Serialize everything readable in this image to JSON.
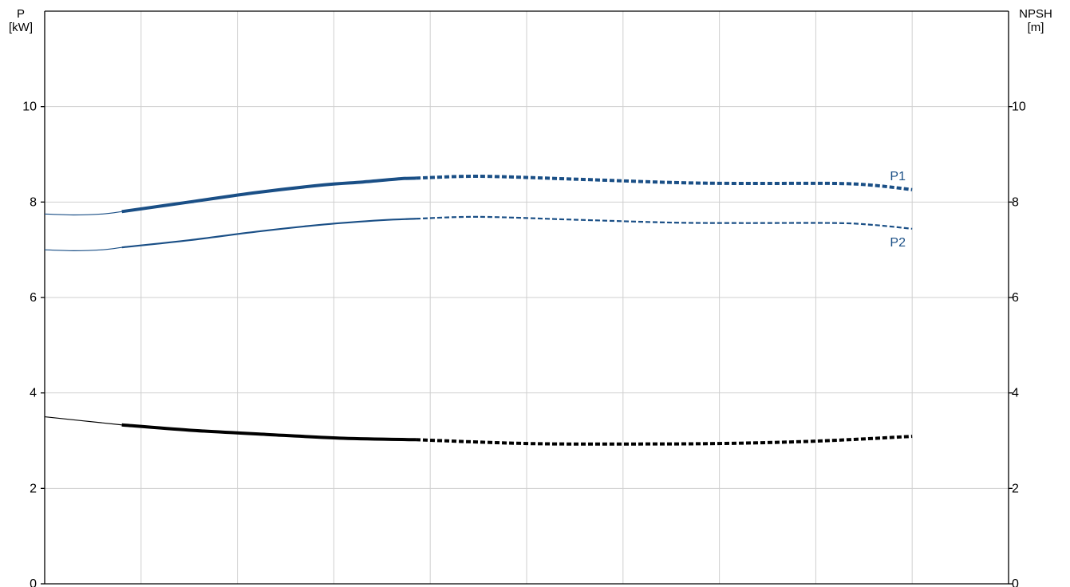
{
  "chart_data": {
    "type": "line",
    "title": "",
    "left_axis": {
      "label_top": "P",
      "label_unit": "[kW]",
      "range": [
        0,
        12
      ],
      "ticks": [
        0,
        2,
        4,
        6,
        8,
        10
      ]
    },
    "right_axis": {
      "label_top": "NPSH",
      "label_unit": "[m]",
      "range": [
        0,
        12
      ],
      "ticks": [
        0,
        2,
        4,
        6,
        8,
        10
      ]
    },
    "x_range": [
      0,
      10
    ],
    "vertical_grid_x": [
      1,
      2,
      3,
      4,
      5,
      6,
      7,
      8,
      9
    ],
    "grid": true,
    "series": [
      {
        "name": "P1",
        "axis": "left",
        "color": "#1a4f86",
        "label_position": "above-end",
        "thin": [
          [
            0,
            7.75
          ],
          [
            0.3,
            7.73
          ],
          [
            0.6,
            7.75
          ],
          [
            0.8,
            7.8
          ]
        ],
        "solid": [
          [
            0.8,
            7.8
          ],
          [
            1.5,
            8.0
          ],
          [
            2.2,
            8.2
          ],
          [
            2.9,
            8.36
          ],
          [
            3.3,
            8.42
          ],
          [
            3.7,
            8.49
          ],
          [
            3.85,
            8.5
          ]
        ],
        "dashed": [
          [
            3.85,
            8.5
          ],
          [
            4.5,
            8.54
          ],
          [
            5.5,
            8.48
          ],
          [
            6.5,
            8.41
          ],
          [
            7.2,
            8.39
          ],
          [
            8.2,
            8.39
          ],
          [
            8.6,
            8.35
          ],
          [
            9.0,
            8.26
          ]
        ]
      },
      {
        "name": "P2",
        "axis": "left",
        "color": "#1a4f86",
        "label_position": "below-end",
        "thin": [
          [
            0,
            7.0
          ],
          [
            0.3,
            6.98
          ],
          [
            0.6,
            7.0
          ],
          [
            0.8,
            7.05
          ]
        ],
        "solid": [
          [
            0.8,
            7.05
          ],
          [
            1.5,
            7.2
          ],
          [
            2.2,
            7.38
          ],
          [
            2.9,
            7.53
          ],
          [
            3.5,
            7.62
          ],
          [
            3.85,
            7.65
          ]
        ],
        "dashed": [
          [
            3.85,
            7.65
          ],
          [
            4.5,
            7.69
          ],
          [
            5.5,
            7.63
          ],
          [
            6.5,
            7.57
          ],
          [
            7.2,
            7.56
          ],
          [
            8.2,
            7.56
          ],
          [
            8.6,
            7.52
          ],
          [
            9.0,
            7.44
          ]
        ]
      },
      {
        "name": "",
        "axis": "right",
        "color": "#000000",
        "label_position": "",
        "thin": [
          [
            0,
            3.5
          ],
          [
            0.8,
            3.33
          ]
        ],
        "solid": [
          [
            0.8,
            3.33
          ],
          [
            1.5,
            3.22
          ],
          [
            2.3,
            3.13
          ],
          [
            3.1,
            3.05
          ],
          [
            3.85,
            3.02
          ]
        ],
        "dashed": [
          [
            3.85,
            3.02
          ],
          [
            5.0,
            2.94
          ],
          [
            6.0,
            2.93
          ],
          [
            7.0,
            2.94
          ],
          [
            8.0,
            2.99
          ],
          [
            9.0,
            3.09
          ]
        ]
      }
    ]
  }
}
